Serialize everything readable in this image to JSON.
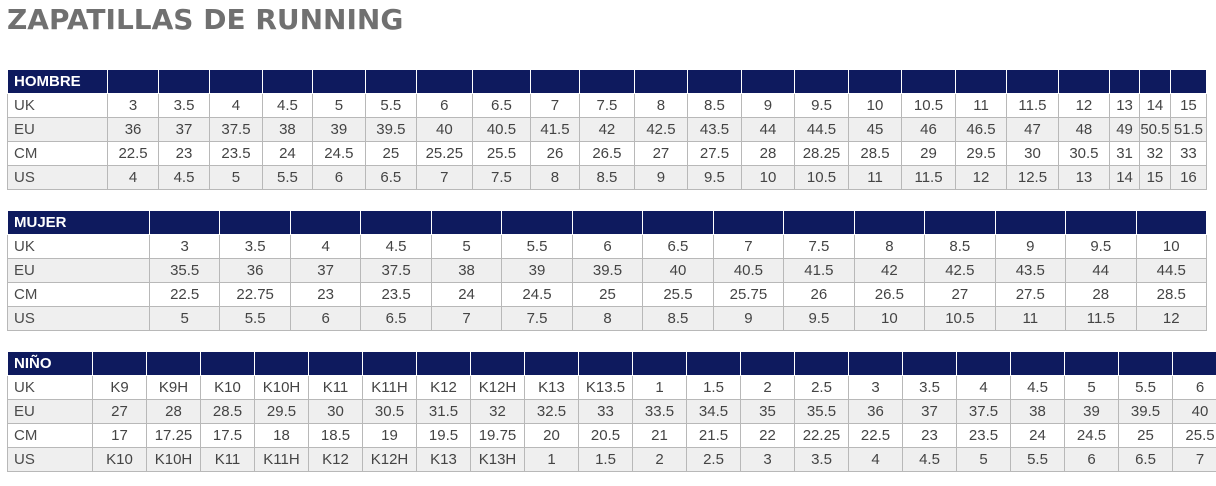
{
  "page": {
    "title": "ZAPATILLAS DE RUNNING"
  },
  "tables": [
    {
      "name": "HOMBRE",
      "rows": [
        {
          "label": "UK",
          "values": [
            "3",
            "3.5",
            "4",
            "4.5",
            "5",
            "5.5",
            "6",
            "6.5",
            "7",
            "7.5",
            "8",
            "8.5",
            "9",
            "9.5",
            "10",
            "10.5",
            "11",
            "11.5",
            "12",
            "13",
            "14",
            "15"
          ]
        },
        {
          "label": "EU",
          "values": [
            "36",
            "37",
            "37.5",
            "38",
            "39",
            "39.5",
            "40",
            "40.5",
            "41.5",
            "42",
            "42.5",
            "43.5",
            "44",
            "44.5",
            "45",
            "46",
            "46.5",
            "47",
            "48",
            "49",
            "50.5",
            "51.5"
          ]
        },
        {
          "label": "CM",
          "values": [
            "22.5",
            "23",
            "23.5",
            "24",
            "24.5",
            "25",
            "25.25",
            "25.5",
            "26",
            "26.5",
            "27",
            "27.5",
            "28",
            "28.25",
            "28.5",
            "29",
            "29.5",
            "30",
            "30.5",
            "31",
            "32",
            "33"
          ]
        },
        {
          "label": "US",
          "values": [
            "4",
            "4.5",
            "5",
            "5.5",
            "6",
            "6.5",
            "7",
            "7.5",
            "8",
            "8.5",
            "9",
            "9.5",
            "10",
            "10.5",
            "11",
            "11.5",
            "12",
            "12.5",
            "13",
            "14",
            "15",
            "16"
          ]
        }
      ]
    },
    {
      "name": "MUJER",
      "rows": [
        {
          "label": "UK",
          "values": [
            "3",
            "3.5",
            "4",
            "4.5",
            "5",
            "5.5",
            "6",
            "6.5",
            "7",
            "7.5",
            "8",
            "8.5",
            "9",
            "9.5",
            "10"
          ]
        },
        {
          "label": "EU",
          "values": [
            "35.5",
            "36",
            "37",
            "37.5",
            "38",
            "39",
            "39.5",
            "40",
            "40.5",
            "41.5",
            "42",
            "42.5",
            "43.5",
            "44",
            "44.5"
          ]
        },
        {
          "label": "CM",
          "values": [
            "22.5",
            "22.75",
            "23",
            "23.5",
            "24",
            "24.5",
            "25",
            "25.5",
            "25.75",
            "26",
            "26.5",
            "27",
            "27.5",
            "28",
            "28.5"
          ]
        },
        {
          "label": "US",
          "values": [
            "5",
            "5.5",
            "6",
            "6.5",
            "7",
            "7.5",
            "8",
            "8.5",
            "9",
            "9.5",
            "10",
            "10.5",
            "11",
            "11.5",
            "12"
          ]
        }
      ]
    },
    {
      "name": "NIÑO",
      "rows": [
        {
          "label": "UK",
          "values": [
            "K9",
            "K9H",
            "K10",
            "K10H",
            "K11",
            "K11H",
            "K12",
            "K12H",
            "K13",
            "K13.5",
            "1",
            "1.5",
            "2",
            "2.5",
            "3",
            "3.5",
            "4",
            "4.5",
            "5",
            "5.5",
            "6"
          ]
        },
        {
          "label": "EU",
          "values": [
            "27",
            "28",
            "28.5",
            "29.5",
            "30",
            "30.5",
            "31.5",
            "32",
            "32.5",
            "33",
            "33.5",
            "34.5",
            "35",
            "35.5",
            "36",
            "37",
            "37.5",
            "38",
            "39",
            "39.5",
            "40"
          ]
        },
        {
          "label": "CM",
          "values": [
            "17",
            "17.25",
            "17.5",
            "18",
            "18.5",
            "19",
            "19.5",
            "19.75",
            "20",
            "20.5",
            "21",
            "21.5",
            "22",
            "22.25",
            "22.5",
            "23",
            "23.5",
            "24",
            "24.5",
            "25",
            "25.5"
          ]
        },
        {
          "label": "US",
          "values": [
            "K10",
            "K10H",
            "K11",
            "K11H",
            "K12",
            "K12H",
            "K13",
            "K13H",
            "1",
            "1.5",
            "2",
            "2.5",
            "3",
            "3.5",
            "4",
            "4.5",
            "5",
            "5.5",
            "6",
            "6.5",
            "7"
          ]
        }
      ]
    }
  ]
}
